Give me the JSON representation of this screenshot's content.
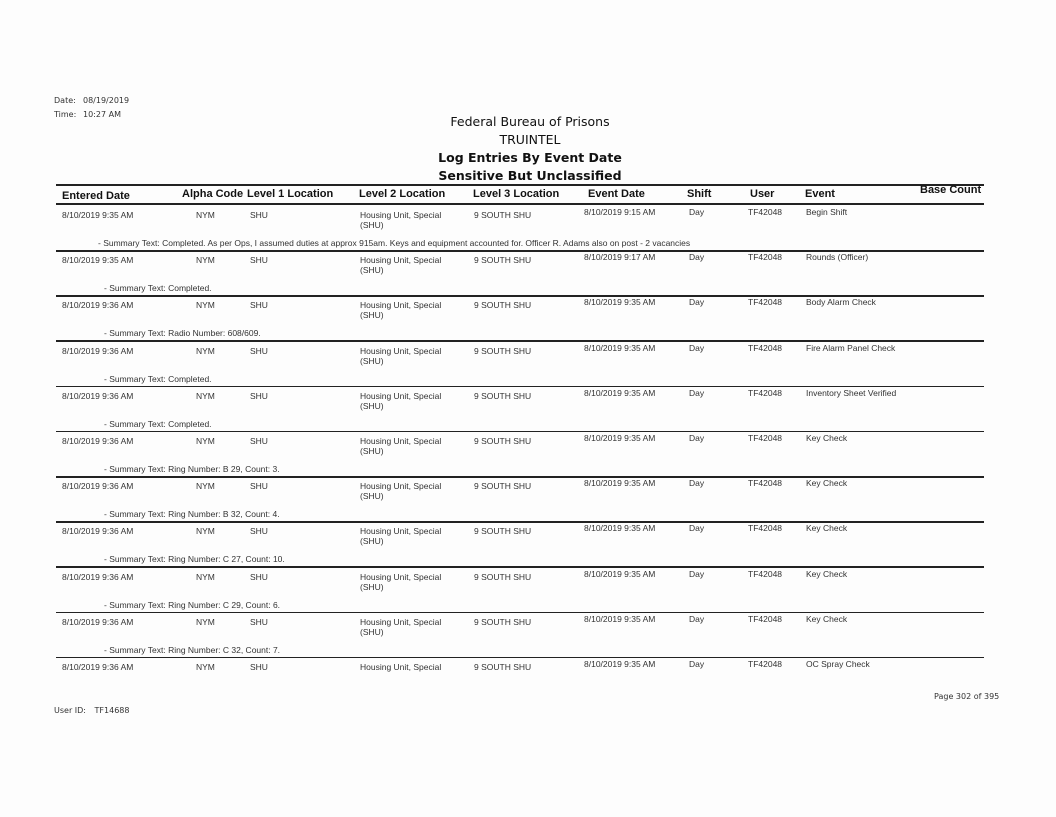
{
  "meta": {
    "date_label": "Date:",
    "date": "08/19/2019",
    "time_label": "Time:",
    "time": "10:27 AM"
  },
  "title": {
    "org": "Federal Bureau of Prisons",
    "system": "TRUINTEL",
    "report": "Log Entries By Event Date",
    "classification": "Sensitive But Unclassified"
  },
  "columns": [
    "Entered Date",
    "Alpha Code",
    "Level 1 Location",
    "Level 2 Location",
    "Level 3 Location",
    "Event Date",
    "Shift",
    "User",
    "Event",
    "Base Count"
  ],
  "rows": [
    {
      "entered": "8/10/2019 9:35 AM",
      "alpha": "NYM",
      "l1": "SHU",
      "l2": "Housing Unit, Special (SHU)",
      "l3": "9 SOUTH SHU",
      "event_date": "8/10/2019 9:15 AM",
      "shift": "Day",
      "user": "TF42048",
      "event": "Begin Shift",
      "summary": "- Summary Text: Completed.  As per Ops, I assumed duties at approx 915am. Keys and equipment accounted for. Officer R. Adams also on post - 2 vacancies"
    },
    {
      "entered": "8/10/2019 9:35 AM",
      "alpha": "NYM",
      "l1": "SHU",
      "l2": "Housing Unit, Special (SHU)",
      "l3": "9 SOUTH SHU",
      "event_date": "8/10/2019 9:17 AM",
      "shift": "Day",
      "user": "TF42048",
      "event": "Rounds (Officer)",
      "summary": "- Summary Text: Completed."
    },
    {
      "entered": "8/10/2019 9:36 AM",
      "alpha": "NYM",
      "l1": "SHU",
      "l2": "Housing Unit, Special (SHU)",
      "l3": "9 SOUTH SHU",
      "event_date": "8/10/2019 9:35 AM",
      "shift": "Day",
      "user": "TF42048",
      "event": "Body Alarm Check",
      "summary": "- Summary Text: Radio Number: 608/609."
    },
    {
      "entered": "8/10/2019 9:36 AM",
      "alpha": "NYM",
      "l1": "SHU",
      "l2": "Housing Unit, Special (SHU)",
      "l3": "9 SOUTH SHU",
      "event_date": "8/10/2019 9:35 AM",
      "shift": "Day",
      "user": "TF42048",
      "event": "Fire Alarm Panel Check",
      "summary": "- Summary Text: Completed."
    },
    {
      "entered": "8/10/2019 9:36 AM",
      "alpha": "NYM",
      "l1": "SHU",
      "l2": "Housing Unit, Special (SHU)",
      "l3": "9 SOUTH SHU",
      "event_date": "8/10/2019 9:35 AM",
      "shift": "Day",
      "user": "TF42048",
      "event": "Inventory Sheet Verified",
      "summary": "- Summary Text: Completed."
    },
    {
      "entered": "8/10/2019 9:36 AM",
      "alpha": "NYM",
      "l1": "SHU",
      "l2": "Housing Unit, Special (SHU)",
      "l3": "9 SOUTH SHU",
      "event_date": "8/10/2019 9:35 AM",
      "shift": "Day",
      "user": "TF42048",
      "event": "Key Check",
      "summary": "- Summary Text: Ring Number: B 29, Count: 3."
    },
    {
      "entered": "8/10/2019 9:36 AM",
      "alpha": "NYM",
      "l1": "SHU",
      "l2": "Housing Unit, Special (SHU)",
      "l3": "9 SOUTH SHU",
      "event_date": "8/10/2019 9:35 AM",
      "shift": "Day",
      "user": "TF42048",
      "event": "Key Check",
      "summary": "- Summary Text: Ring Number: B 32, Count: 4."
    },
    {
      "entered": "8/10/2019 9:36 AM",
      "alpha": "NYM",
      "l1": "SHU",
      "l2": "Housing Unit, Special (SHU)",
      "l3": "9 SOUTH SHU",
      "event_date": "8/10/2019 9:35 AM",
      "shift": "Day",
      "user": "TF42048",
      "event": "Key Check",
      "summary": "- Summary Text: Ring Number: C 27, Count: 10."
    },
    {
      "entered": "8/10/2019 9:36 AM",
      "alpha": "NYM",
      "l1": "SHU",
      "l2": "Housing Unit, Special (SHU)",
      "l3": "9 SOUTH SHU",
      "event_date": "8/10/2019 9:35 AM",
      "shift": "Day",
      "user": "TF42048",
      "event": "Key Check",
      "summary": "- Summary Text: Ring Number: C 29, Count: 6."
    },
    {
      "entered": "8/10/2019 9:36 AM",
      "alpha": "NYM",
      "l1": "SHU",
      "l2": "Housing Unit, Special (SHU)",
      "l3": "9 SOUTH SHU",
      "event_date": "8/10/2019 9:35 AM",
      "shift": "Day",
      "user": "TF42048",
      "event": "Key Check",
      "summary": "- Summary Text: Ring Number: C 32, Count: 7."
    },
    {
      "entered": "8/10/2019 9:36 AM",
      "alpha": "NYM",
      "l1": "SHU",
      "l2": "Housing Unit, Special",
      "l3": "9 SOUTH SHU",
      "event_date": "8/10/2019 9:35 AM",
      "shift": "Day",
      "user": "TF42048",
      "event": "OC Spray Check",
      "summary": ""
    }
  ],
  "footer": {
    "user_label": "User ID:",
    "user_id": "TF14688",
    "page": "Page 302 of 395"
  }
}
